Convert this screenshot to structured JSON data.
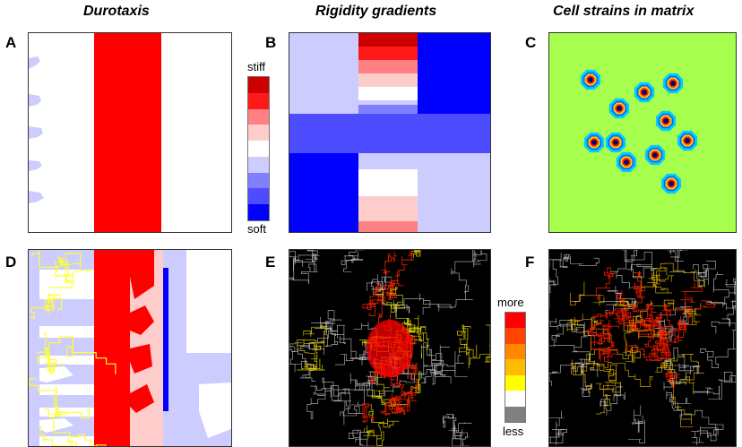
{
  "columns": {
    "durotaxis": "Durotaxis",
    "rigidity": "Rigidity gradients",
    "strains": "Cell strains in matrix"
  },
  "panels": {
    "a": "A",
    "b": "B",
    "c": "C",
    "d": "D",
    "e": "E",
    "f": "F"
  },
  "rigidity_scale": {
    "top_label": "stiff",
    "bottom_label": "soft",
    "colors": [
      "#cc0000",
      "#ff1a1a",
      "#ff8080",
      "#ffcccc",
      "#ffffff",
      "#ccccff",
      "#8080ff",
      "#4d4dff",
      "#0000ff"
    ]
  },
  "frequency_scale": {
    "top_label": "more",
    "bottom_label": "less",
    "colors": [
      "#ff0000",
      "#ff4400",
      "#ff8800",
      "#ffbb00",
      "#ffff00",
      "#ffffff",
      "#808080"
    ]
  },
  "colors": {
    "stiff_stripe": "#ff0000",
    "soft_region": "#ccccff",
    "matrix_background": "#a6ff4d",
    "trace_background": "#000000",
    "trace_yellow": "#ffff33",
    "trace_white": "#ffffff"
  }
}
